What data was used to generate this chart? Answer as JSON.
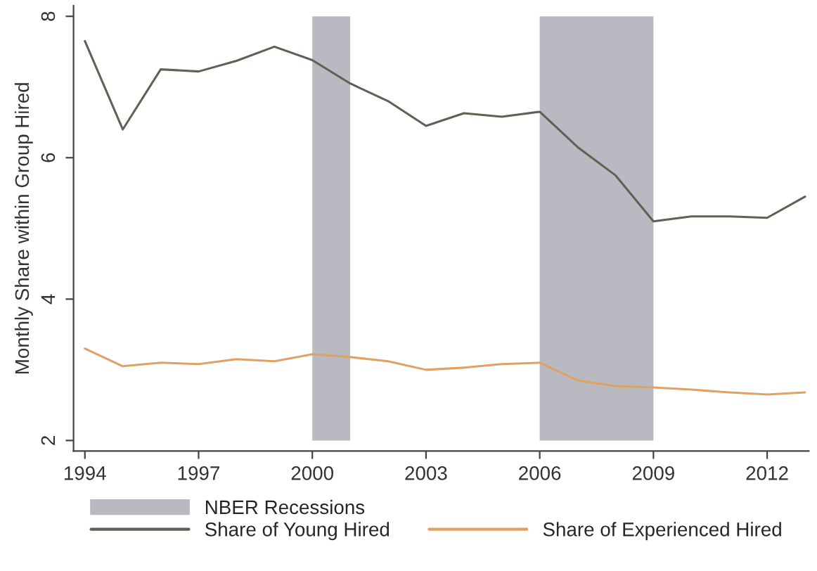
{
  "chart_data": {
    "type": "line",
    "ylabel": "Monthly Share within Group Hired",
    "x": [
      1994,
      1995,
      1996,
      1997,
      1998,
      1999,
      2000,
      2001,
      2002,
      2003,
      2004,
      2005,
      2006,
      2007,
      2008,
      2009,
      2010,
      2011,
      2012,
      2013
    ],
    "series": [
      {
        "name": "Share of Young Hired",
        "color": "#5c6352",
        "values": [
          7.65,
          6.4,
          7.25,
          7.22,
          7.37,
          7.57,
          7.38,
          7.05,
          6.8,
          6.45,
          6.63,
          6.58,
          6.65,
          6.15,
          5.75,
          5.1,
          5.17,
          5.17,
          5.15,
          5.45
        ]
      },
      {
        "name": "Share of Experienced Hired",
        "color": "#e0a264",
        "values": [
          3.3,
          3.05,
          3.1,
          3.08,
          3.15,
          3.12,
          3.22,
          3.18,
          3.12,
          3.0,
          3.03,
          3.08,
          3.1,
          2.85,
          2.77,
          2.75,
          2.72,
          2.68,
          2.65,
          2.68
        ]
      }
    ],
    "bands": [
      {
        "axis": "x",
        "from": 2000,
        "to": 2001,
        "label": "NBER Recessions",
        "color": "#b9b9c1"
      },
      {
        "axis": "x",
        "from": 2006,
        "to": 2009,
        "label": null,
        "color": "#b9b9c1"
      }
    ],
    "xlim": [
      1993.7,
      2013.1
    ],
    "xticks": [
      1994,
      1997,
      2000,
      2003,
      2006,
      2009,
      2012
    ],
    "ylim": [
      1.85,
      8.15
    ],
    "yticks": [
      2,
      4,
      6,
      8
    ],
    "grid": false,
    "legend": "bottom",
    "line_style": "solid",
    "marker": "none"
  }
}
